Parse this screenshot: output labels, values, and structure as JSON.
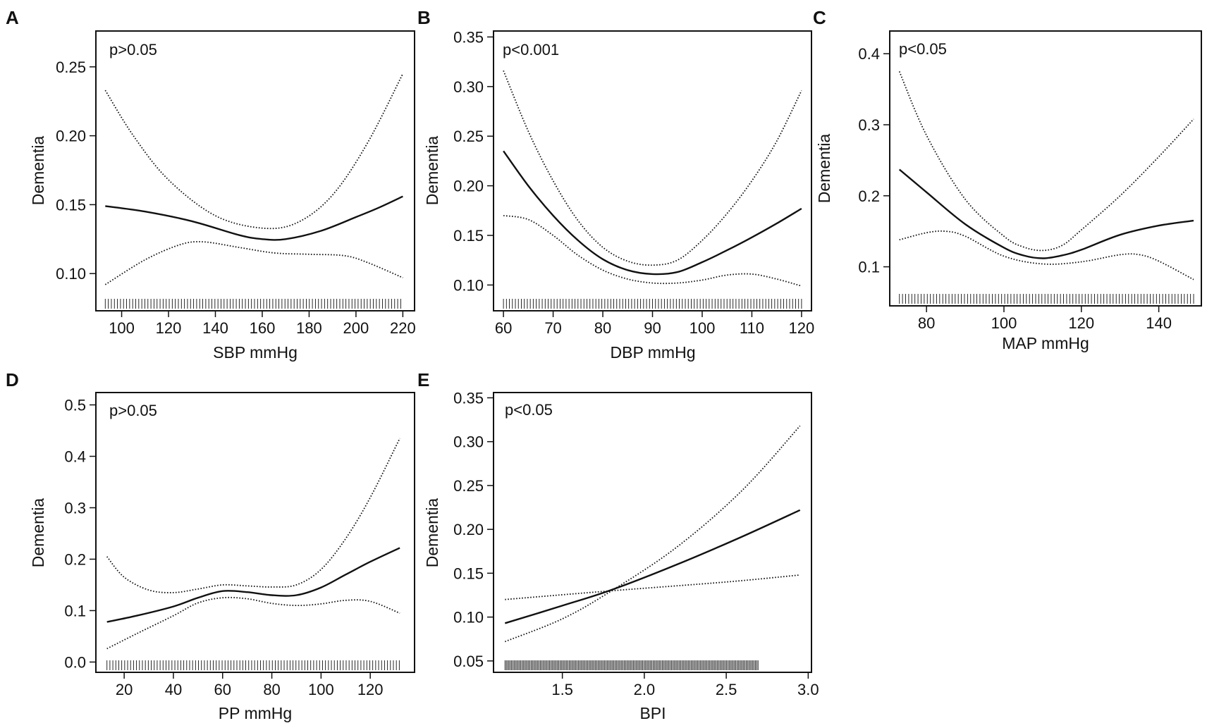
{
  "chart_data": [
    {
      "panel": "A",
      "type": "line",
      "title": "",
      "annotation": "p>0.05",
      "xlabel": "SBP mmHg",
      "ylabel": "Dementia",
      "xlim": [
        89,
        225
      ],
      "ylim": [
        0.073,
        0.276
      ],
      "xticks": [
        100,
        120,
        140,
        160,
        180,
        200,
        220
      ],
      "yticks": [
        0.1,
        0.15,
        0.2,
        0.25
      ],
      "ytick_decimals": 2,
      "rug": [
        93,
        220,
        1.3
      ],
      "series": [
        {
          "name": "estimate",
          "style": "solid",
          "x": [
            93,
            110,
            130,
            150,
            160,
            170,
            185,
            200,
            210,
            220
          ],
          "y": [
            0.149,
            0.145,
            0.138,
            0.128,
            0.125,
            0.125,
            0.131,
            0.141,
            0.148,
            0.156
          ]
        },
        {
          "name": "upper CI",
          "style": "dotted",
          "x": [
            93,
            105,
            120,
            140,
            160,
            175,
            190,
            205,
            220
          ],
          "y": [
            0.233,
            0.2,
            0.168,
            0.142,
            0.133,
            0.137,
            0.157,
            0.195,
            0.245
          ]
        },
        {
          "name": "lower CI",
          "style": "dotted",
          "x": [
            93,
            110,
            125,
            135,
            150,
            165,
            180,
            195,
            205,
            220
          ],
          "y": [
            0.092,
            0.11,
            0.121,
            0.123,
            0.119,
            0.115,
            0.114,
            0.113,
            0.108,
            0.097
          ]
        }
      ]
    },
    {
      "panel": "B",
      "type": "line",
      "title": "",
      "annotation": "p<0.001",
      "xlabel": "DBP mmHg",
      "ylabel": "Dementia",
      "xlim": [
        58,
        122
      ],
      "ylim": [
        0.074,
        0.356
      ],
      "xticks": [
        60,
        70,
        80,
        90,
        100,
        110,
        120
      ],
      "yticks": [
        0.1,
        0.15,
        0.2,
        0.25,
        0.3,
        0.35
      ],
      "ytick_decimals": 2,
      "rug": [
        60,
        120,
        0.6
      ],
      "series": [
        {
          "name": "estimate",
          "style": "solid",
          "x": [
            60,
            65,
            70,
            75,
            80,
            85,
            90,
            95,
            100,
            105,
            110,
            115,
            120
          ],
          "y": [
            0.235,
            0.2,
            0.17,
            0.145,
            0.126,
            0.115,
            0.111,
            0.113,
            0.123,
            0.135,
            0.148,
            0.162,
            0.177
          ]
        },
        {
          "name": "upper CI",
          "style": "dotted",
          "x": [
            60,
            65,
            70,
            75,
            80,
            85,
            90,
            95,
            100,
            105,
            110,
            115,
            120
          ],
          "y": [
            0.316,
            0.255,
            0.205,
            0.165,
            0.138,
            0.124,
            0.12,
            0.125,
            0.145,
            0.172,
            0.205,
            0.245,
            0.296
          ]
        },
        {
          "name": "lower CI",
          "style": "dotted",
          "x": [
            60,
            65,
            70,
            75,
            80,
            85,
            90,
            95,
            100,
            105,
            110,
            115,
            120
          ],
          "y": [
            0.17,
            0.166,
            0.15,
            0.13,
            0.115,
            0.106,
            0.102,
            0.102,
            0.105,
            0.11,
            0.111,
            0.106,
            0.099
          ]
        }
      ]
    },
    {
      "panel": "C",
      "type": "line",
      "title": "",
      "annotation": "p<0.05",
      "xlabel": "MAP mmHg",
      "ylabel": "Dementia",
      "xlim": [
        70.5,
        151
      ],
      "ylim": [
        0.045,
        0.432
      ],
      "xticks": [
        80,
        100,
        120,
        140
      ],
      "yticks": [
        0.1,
        0.2,
        0.3,
        0.4
      ],
      "ytick_decimals": 1,
      "rug": [
        73,
        149,
        0.8
      ],
      "series": [
        {
          "name": "estimate",
          "style": "solid",
          "x": [
            73,
            80,
            90,
            100,
            105,
            110,
            115,
            120,
            130,
            140,
            149
          ],
          "y": [
            0.237,
            0.205,
            0.16,
            0.127,
            0.116,
            0.112,
            0.116,
            0.124,
            0.145,
            0.158,
            0.165
          ]
        },
        {
          "name": "upper CI",
          "style": "dotted",
          "x": [
            73,
            80,
            90,
            100,
            105,
            110,
            115,
            120,
            130,
            140,
            149
          ],
          "y": [
            0.375,
            0.285,
            0.195,
            0.143,
            0.128,
            0.123,
            0.13,
            0.152,
            0.2,
            0.255,
            0.308
          ]
        },
        {
          "name": "lower CI",
          "style": "dotted",
          "x": [
            73,
            80,
            85,
            90,
            100,
            110,
            120,
            130,
            135,
            140,
            149
          ],
          "y": [
            0.138,
            0.148,
            0.15,
            0.143,
            0.115,
            0.104,
            0.107,
            0.117,
            0.117,
            0.108,
            0.082
          ]
        }
      ]
    },
    {
      "panel": "D",
      "type": "line",
      "title": "",
      "annotation": "p>0.05",
      "xlabel": "PP mmHg",
      "ylabel": "Dementia",
      "xlim": [
        8.5,
        138
      ],
      "ylim": [
        -0.02,
        0.524
      ],
      "xticks": [
        20,
        40,
        60,
        80,
        100,
        120
      ],
      "yticks": [
        0.0,
        0.1,
        0.2,
        0.3,
        0.4,
        0.5
      ],
      "ytick_decimals": 1,
      "rug": [
        13,
        132,
        1.2
      ],
      "series": [
        {
          "name": "estimate",
          "style": "solid",
          "x": [
            13,
            25,
            40,
            50,
            60,
            70,
            80,
            90,
            100,
            110,
            120,
            132
          ],
          "y": [
            0.078,
            0.09,
            0.108,
            0.125,
            0.138,
            0.136,
            0.13,
            0.13,
            0.145,
            0.17,
            0.195,
            0.222
          ]
        },
        {
          "name": "upper CI",
          "style": "dotted",
          "x": [
            13,
            20,
            30,
            40,
            50,
            60,
            70,
            80,
            90,
            100,
            110,
            120,
            132
          ],
          "y": [
            0.205,
            0.165,
            0.14,
            0.135,
            0.142,
            0.15,
            0.148,
            0.146,
            0.15,
            0.18,
            0.24,
            0.32,
            0.435
          ]
        },
        {
          "name": "lower CI",
          "style": "dotted",
          "x": [
            13,
            25,
            40,
            50,
            60,
            70,
            80,
            90,
            100,
            110,
            120,
            132
          ],
          "y": [
            0.026,
            0.055,
            0.09,
            0.115,
            0.125,
            0.123,
            0.114,
            0.11,
            0.113,
            0.12,
            0.118,
            0.095
          ]
        }
      ]
    },
    {
      "panel": "E",
      "type": "line",
      "title": "",
      "annotation": "p<0.05",
      "xlabel": "BPI",
      "ylabel": "Dementia",
      "xlim": [
        1.08,
        3.02
      ],
      "ylim": [
        0.037,
        0.356
      ],
      "xticks": [
        1.5,
        2.0,
        2.5,
        3.0
      ],
      "xtick_decimals": 1,
      "yticks": [
        0.05,
        0.1,
        0.15,
        0.2,
        0.25,
        0.3,
        0.35
      ],
      "ytick_decimals": 2,
      "rug": [
        1.15,
        2.7,
        0.008
      ],
      "series": [
        {
          "name": "estimate",
          "style": "solid",
          "x": [
            1.15,
            1.5,
            1.8,
            2.2,
            2.6,
            2.95
          ],
          "y": [
            0.093,
            0.113,
            0.131,
            0.16,
            0.192,
            0.222
          ]
        },
        {
          "name": "upper CI",
          "style": "dotted",
          "x": [
            1.15,
            1.5,
            1.8,
            2.2,
            2.6,
            2.95
          ],
          "y": [
            0.072,
            0.098,
            0.13,
            0.18,
            0.245,
            0.318
          ]
        },
        {
          "name": "lower CI",
          "style": "dotted",
          "x": [
            1.15,
            1.8,
            2.5,
            2.95
          ],
          "y": [
            0.12,
            0.13,
            0.14,
            0.148
          ]
        }
      ]
    }
  ]
}
